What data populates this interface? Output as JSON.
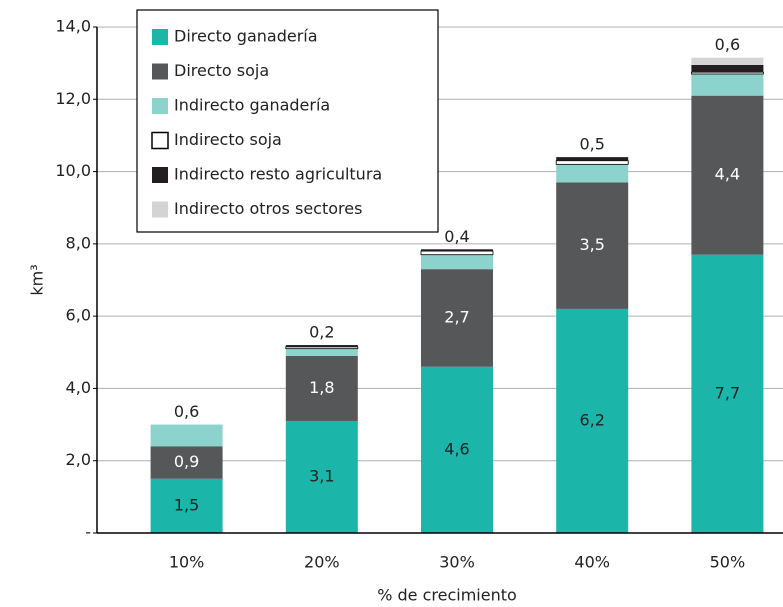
{
  "chart_data": {
    "type": "stacked_bar",
    "x_label": "% de crecimiento",
    "y_label": "km³",
    "categories": [
      "10%",
      "20%",
      "30%",
      "40%",
      "50%"
    ],
    "series": [
      {
        "name": "Directo ganadería",
        "color": "#1cb5aa",
        "values": [
          1.5,
          3.1,
          4.6,
          6.2,
          7.7
        ],
        "value_labels": [
          "1,5",
          "3,1",
          "4,6",
          "6,2",
          "7,7"
        ]
      },
      {
        "name": "Directo soja",
        "color": "#555759",
        "values": [
          0.9,
          1.8,
          2.7,
          3.5,
          4.4
        ],
        "value_labels": [
          "0,9",
          "1,8",
          "2,7",
          "3,5",
          "4,4"
        ]
      },
      {
        "name": "Indirecto ganadería",
        "color": "#8cd2cd",
        "values": [
          0.6,
          0.2,
          0.4,
          0.5,
          0.6
        ],
        "value_labels": [
          "0,6",
          "0,2",
          "0,4",
          "0,5",
          "0,6"
        ]
      },
      {
        "name": "Indirecto soja",
        "color": "#ffffff",
        "values": [
          0,
          0.05,
          0.1,
          0.1,
          0.05
        ]
      },
      {
        "name": "Indirecto resto agricultura",
        "color": "#231f20",
        "values": [
          0,
          0.05,
          0.05,
          0.1,
          0.2
        ]
      },
      {
        "name": "Indirecto otros sectores",
        "color": "#d4d4d4",
        "values": [
          0,
          0,
          0,
          0,
          0.2
        ]
      }
    ],
    "ylim": [
      0,
      14
    ],
    "yticks": [
      {
        "value": 0,
        "label": "-"
      },
      {
        "value": 2,
        "label": "2,0"
      },
      {
        "value": 4,
        "label": "4,0"
      },
      {
        "value": 6,
        "label": "6,0"
      },
      {
        "value": 8,
        "label": "8,0"
      },
      {
        "value": 10,
        "label": "10,0"
      },
      {
        "value": 12,
        "label": "12,0"
      },
      {
        "value": 14,
        "label": "14,0"
      }
    ],
    "grid": true
  }
}
